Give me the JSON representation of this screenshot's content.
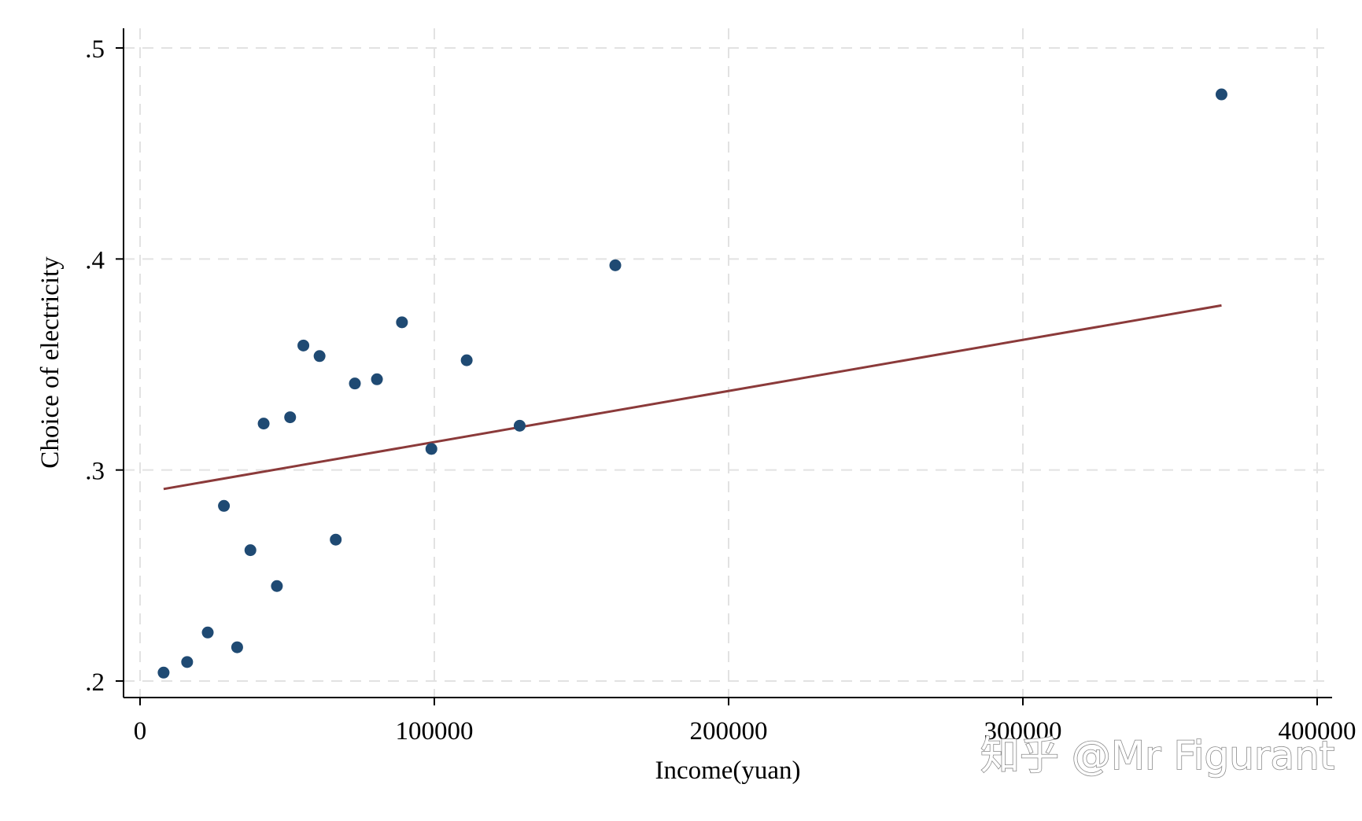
{
  "chart_data": {
    "type": "scatter",
    "xlabel": "Income(yuan)",
    "ylabel": "Choice of electricity",
    "xlim": [
      0,
      400000
    ],
    "ylim": [
      0.2,
      0.5
    ],
    "x_ticks": [
      0,
      100000,
      200000,
      300000,
      400000
    ],
    "x_tick_labels": [
      "0",
      "100000",
      "200000",
      "300000",
      "400000"
    ],
    "y_ticks": [
      0.2,
      0.3,
      0.4,
      0.5
    ],
    "y_tick_labels": [
      ".2",
      ".3",
      ".4",
      ".5"
    ],
    "grid": true,
    "series": [
      {
        "type": "scatter",
        "color": "#1f4a73",
        "points": [
          {
            "x": 8000,
            "y": 0.204
          },
          {
            "x": 16000,
            "y": 0.209
          },
          {
            "x": 23000,
            "y": 0.223
          },
          {
            "x": 28500,
            "y": 0.283
          },
          {
            "x": 33000,
            "y": 0.216
          },
          {
            "x": 37500,
            "y": 0.262
          },
          {
            "x": 42000,
            "y": 0.322
          },
          {
            "x": 46500,
            "y": 0.245
          },
          {
            "x": 51000,
            "y": 0.325
          },
          {
            "x": 55500,
            "y": 0.359
          },
          {
            "x": 61000,
            "y": 0.354
          },
          {
            "x": 66500,
            "y": 0.267
          },
          {
            "x": 73000,
            "y": 0.341
          },
          {
            "x": 80500,
            "y": 0.343
          },
          {
            "x": 89000,
            "y": 0.37
          },
          {
            "x": 99000,
            "y": 0.31
          },
          {
            "x": 111000,
            "y": 0.352
          },
          {
            "x": 129000,
            "y": 0.321
          },
          {
            "x": 161500,
            "y": 0.397
          },
          {
            "x": 367500,
            "y": 0.478
          }
        ]
      },
      {
        "type": "line",
        "color": "#8b3a3a",
        "points": [
          {
            "x": 8000,
            "y": 0.291
          },
          {
            "x": 367500,
            "y": 0.378
          }
        ]
      }
    ]
  },
  "watermark": "知乎 @Mr Figurant",
  "colors": {
    "grid": "#e2e2e2",
    "axis": "#000000",
    "background": "#ffffff"
  }
}
